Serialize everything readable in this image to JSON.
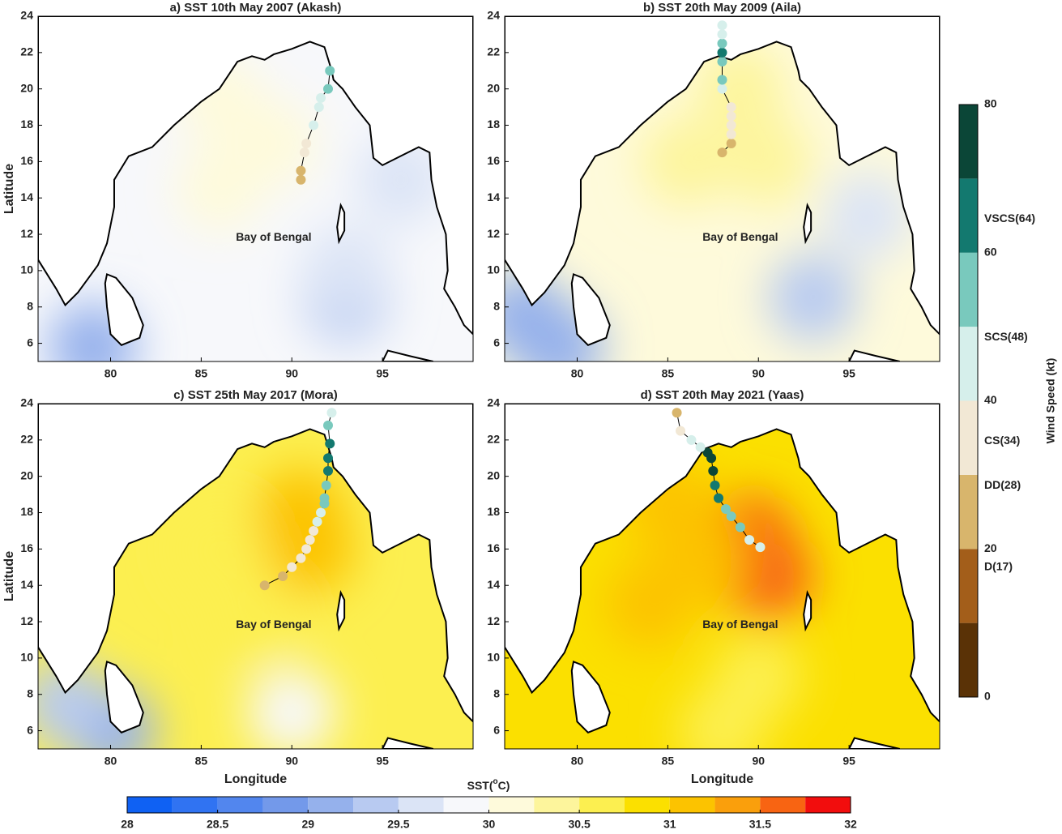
{
  "map": {
    "xlim": [
      76,
      100
    ],
    "ylim": [
      5,
      24
    ],
    "xticks": [
      80,
      85,
      90,
      95
    ],
    "yticks": [
      6,
      8,
      10,
      12,
      14,
      16,
      18,
      20,
      22,
      24
    ],
    "ylabel": "Latitude",
    "xlabel": "Longitude",
    "region_label": "Bay of Bengal",
    "region_lon": 89,
    "region_lat": 11.8,
    "coastline": [
      [
        [
          76,
          24
        ],
        [
          76,
          10.6
        ],
        [
          77,
          9
        ],
        [
          77.5,
          8.1
        ],
        [
          78.2,
          8.8
        ],
        [
          79.3,
          10.3
        ],
        [
          79.8,
          11.5
        ],
        [
          80.2,
          13.5
        ],
        [
          80.2,
          15
        ],
        [
          81,
          16.3
        ],
        [
          82.3,
          16.8
        ],
        [
          83.5,
          18
        ],
        [
          85,
          19.3
        ],
        [
          86,
          20
        ],
        [
          87,
          21.5
        ],
        [
          87.8,
          21.8
        ],
        [
          88.5,
          21.6
        ],
        [
          89,
          21.9
        ],
        [
          90,
          22.2
        ],
        [
          91,
          22.6
        ],
        [
          91.8,
          22.3
        ],
        [
          92.2,
          21
        ],
        [
          92.3,
          20.5
        ],
        [
          92.8,
          20
        ],
        [
          93.5,
          19
        ],
        [
          94.3,
          18
        ],
        [
          94.5,
          16.2
        ],
        [
          95,
          15.8
        ],
        [
          96,
          16.3
        ],
        [
          97,
          16.8
        ],
        [
          97.6,
          16.5
        ],
        [
          97.7,
          15
        ],
        [
          98,
          13.5
        ],
        [
          98.5,
          12
        ],
        [
          98.6,
          10
        ],
        [
          98.4,
          9
        ],
        [
          99,
          8
        ],
        [
          99.5,
          7
        ],
        [
          100,
          6.5
        ],
        [
          100,
          24
        ]
      ],
      [
        [
          79.8,
          9.8
        ],
        [
          80.3,
          9.6
        ],
        [
          81.2,
          8.5
        ],
        [
          81.8,
          7
        ],
        [
          81.6,
          6.3
        ],
        [
          80.6,
          5.9
        ],
        [
          80,
          6.5
        ],
        [
          79.8,
          8
        ],
        [
          79.7,
          9.3
        ]
      ],
      [
        [
          92.7,
          13.6
        ],
        [
          92.9,
          13.2
        ],
        [
          92.9,
          12.2
        ],
        [
          92.6,
          11.6
        ],
        [
          92.5,
          12.4
        ]
      ],
      [
        [
          95.3,
          5.6
        ],
        [
          96.5,
          5.3
        ],
        [
          97.8,
          5
        ],
        [
          95,
          5
        ]
      ]
    ]
  },
  "panels": [
    {
      "title": "a) SST 10th May 2007 (Akash)",
      "base_sst": 29.9,
      "sst_field": [
        [
          86,
          19.5,
          30.1
        ],
        [
          86,
          14.5,
          30.2
        ],
        [
          89,
          17,
          30.1
        ],
        [
          93,
          8.5,
          29.3
        ],
        [
          93,
          10,
          29.5
        ],
        [
          79,
          5.8,
          29.2
        ],
        [
          96,
          15,
          29.6
        ]
      ],
      "track": {
        "lon": [
          90.5,
          90.5,
          90.7,
          90.8,
          91.2,
          91.5,
          91.6,
          92,
          92.1
        ],
        "lat": [
          15,
          15.5,
          16.5,
          17,
          18,
          19,
          19.5,
          20,
          21
        ],
        "wind": [
          25,
          25,
          32,
          35,
          45,
          48,
          48,
          50,
          50
        ]
      }
    },
    {
      "title": "b) SST 20th May 2009 (Aila)",
      "base_sst": 30.2,
      "sst_field": [
        [
          86,
          16,
          30.4
        ],
        [
          90.5,
          16,
          30.4
        ],
        [
          89,
          20,
          30.3
        ],
        [
          93,
          8.5,
          29.4
        ],
        [
          79,
          5.8,
          29.1
        ],
        [
          77,
          7.5,
          29.2
        ],
        [
          96,
          13,
          29.7
        ]
      ],
      "track": {
        "lon": [
          88,
          88.5,
          88.5,
          88.5,
          88.5,
          88.5,
          88,
          88,
          88,
          88,
          88,
          88,
          88
        ],
        "lat": [
          16.5,
          17,
          17.5,
          18,
          18.5,
          19,
          20,
          20.5,
          21.5,
          22,
          22.5,
          23,
          23.5
        ],
        "wind": [
          25,
          28,
          35,
          35,
          35,
          35,
          45,
          55,
          55,
          65,
          55,
          48,
          45
        ]
      }
    },
    {
      "title": "c) SST 25th May 2017 (Mora)",
      "base_sst": 30.5,
      "sst_field": [
        [
          90.5,
          18,
          31.1
        ],
        [
          91,
          16,
          31
        ],
        [
          86,
          16,
          30.7
        ],
        [
          88,
          12,
          30.6
        ],
        [
          80,
          6,
          29.2
        ],
        [
          90,
          7,
          29.8
        ],
        [
          77.5,
          7.5,
          29.3
        ]
      ],
      "track": {
        "lon": [
          88.5,
          89.5,
          90,
          90.5,
          90.8,
          91,
          91.2,
          91.4,
          91.6,
          91.8,
          91.8,
          91.9,
          92,
          92,
          92.1,
          92,
          92.2
        ],
        "lat": [
          14,
          14.5,
          15,
          15.5,
          16,
          16.5,
          17,
          17.5,
          18,
          18.5,
          18.8,
          19.5,
          20.3,
          21,
          21.8,
          22.8,
          23.5
        ],
        "wind": [
          25,
          28,
          30,
          35,
          35,
          38,
          38,
          40,
          45,
          55,
          55,
          55,
          65,
          65,
          65,
          55,
          45
        ]
      }
    },
    {
      "title": "d) SST 20th May 2021 (Yaas)",
      "base_sst": 30.8,
      "sst_field": [
        [
          90.5,
          14.5,
          31.7
        ],
        [
          89.5,
          16.5,
          31.5
        ],
        [
          87,
          15.5,
          31.2
        ],
        [
          85,
          18.5,
          31.2
        ],
        [
          84,
          13,
          31
        ],
        [
          90,
          9,
          30.7
        ],
        [
          88,
          6,
          30.5
        ]
      ],
      "track": {
        "lon": [
          90.1,
          89.5,
          89,
          88.5,
          88.2,
          87.8,
          87.6,
          87.5,
          87.4,
          87.2,
          86.8,
          86.3,
          85.7,
          85.5
        ],
        "lat": [
          16.1,
          16.5,
          17.2,
          17.8,
          18.2,
          18.8,
          19.5,
          20.3,
          21,
          21.3,
          21.6,
          22,
          22.5,
          23.5
        ],
        "wind": [
          45,
          48,
          50,
          55,
          58,
          65,
          68,
          72,
          75,
          75,
          45,
          45,
          38,
          28
        ]
      }
    }
  ],
  "sst_colorbar": {
    "label": "SST(oC)",
    "edges": [
      28,
      28.25,
      28.5,
      28.75,
      29,
      29.25,
      29.5,
      29.75,
      30,
      30.25,
      30.5,
      30.75,
      31,
      31.25,
      31.5,
      31.75,
      32
    ],
    "colors": [
      "#0f61f3",
      "#3073f2",
      "#5286ee",
      "#7399ea",
      "#95b1ec",
      "#b8caf1",
      "#dbe4f6",
      "#f7f8fb",
      "#fefadb",
      "#fdf59c",
      "#fcef50",
      "#fbe000",
      "#fcc300",
      "#fa9f0c",
      "#f86412",
      "#f20d0d"
    ],
    "ticks": [
      28,
      28.5,
      29,
      29.5,
      30,
      30.5,
      31,
      31.5,
      32
    ]
  },
  "wind_colorbar": {
    "label": "Wind Speed (kt)",
    "edges": [
      0,
      10,
      20,
      30,
      40,
      50,
      60,
      70,
      80
    ],
    "colors": [
      "#5a3206",
      "#a35e1a",
      "#d8b56c",
      "#f2e8d5",
      "#d6efeb",
      "#79c9bd",
      "#13796f",
      "#0b4637"
    ],
    "ticks": [
      0,
      20,
      40,
      60,
      80
    ],
    "categories": [
      {
        "value": 17,
        "label": "D(17)"
      },
      {
        "value": 28,
        "label": "DD(28)"
      },
      {
        "value": 34,
        "label": "CS(34)"
      },
      {
        "value": 48,
        "label": "SCS(48)"
      },
      {
        "value": 64,
        "label": "VSCS(64)"
      }
    ]
  }
}
